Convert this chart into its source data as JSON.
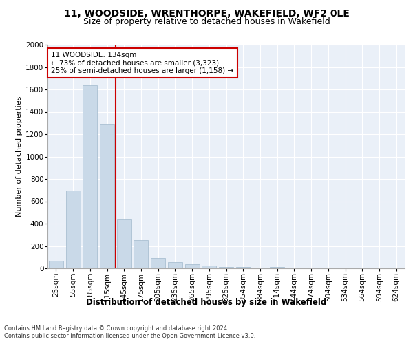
{
  "title1": "11, WOODSIDE, WRENTHORPE, WAKEFIELD, WF2 0LE",
  "title2": "Size of property relative to detached houses in Wakefield",
  "xlabel": "Distribution of detached houses by size in Wakefield",
  "ylabel": "Number of detached properties",
  "categories": [
    "25sqm",
    "55sqm",
    "85sqm",
    "115sqm",
    "145sqm",
    "175sqm",
    "205sqm",
    "235sqm",
    "265sqm",
    "295sqm",
    "325sqm",
    "354sqm",
    "384sqm",
    "414sqm",
    "444sqm",
    "474sqm",
    "504sqm",
    "534sqm",
    "564sqm",
    "594sqm",
    "624sqm"
  ],
  "values": [
    65,
    695,
    1635,
    1290,
    440,
    255,
    95,
    55,
    35,
    25,
    15,
    10,
    0,
    15,
    0,
    0,
    0,
    0,
    0,
    0,
    0
  ],
  "bar_color": "#c9d9e8",
  "bar_edgecolor": "#a0b8cc",
  "property_line_index": 3,
  "property_line_color": "#cc0000",
  "annotation_text": "11 WOODSIDE: 134sqm\n← 73% of detached houses are smaller (3,323)\n25% of semi-detached houses are larger (1,158) →",
  "annotation_box_color": "#cc0000",
  "footer1": "Contains HM Land Registry data © Crown copyright and database right 2024.",
  "footer2": "Contains public sector information licensed under the Open Government Licence v3.0.",
  "ylim": [
    0,
    2000
  ],
  "yticks": [
    0,
    200,
    400,
    600,
    800,
    1000,
    1200,
    1400,
    1600,
    1800,
    2000
  ],
  "plot_bg_color": "#eaf0f8",
  "title1_fontsize": 10,
  "title2_fontsize": 9,
  "xlabel_fontsize": 8.5,
  "ylabel_fontsize": 8,
  "tick_fontsize": 7.5,
  "footer_fontsize": 6,
  "annot_fontsize": 7.5
}
